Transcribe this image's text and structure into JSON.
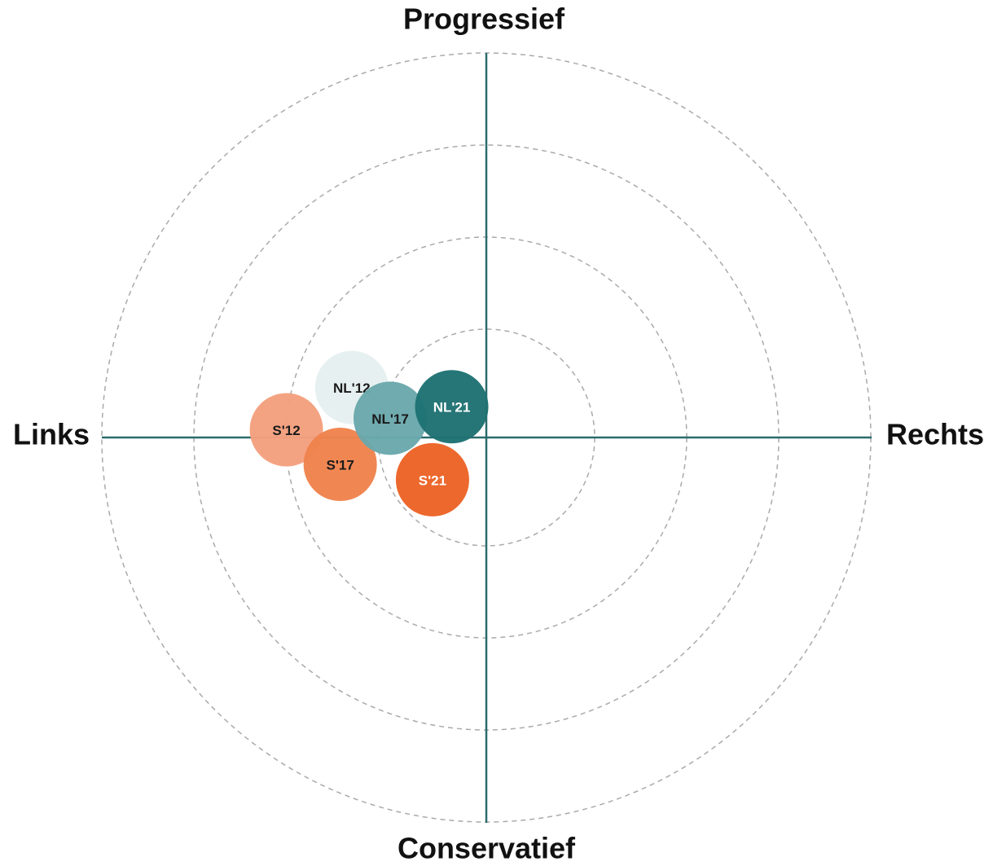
{
  "chart_data": {
    "type": "scatter",
    "top_label": "Progressief",
    "bottom_label": "Conservatief",
    "left_label": "Links",
    "right_label": "Rechts",
    "xlim": [
      -10,
      10
    ],
    "ylim": [
      -10,
      10
    ],
    "series": [
      {
        "name": "NL'12",
        "color": "#e6efef",
        "label_color": "#1a1a1a",
        "x": [
          -3.5
        ],
        "values": [
          1.3
        ]
      },
      {
        "name": "S'12",
        "color": "#f4a07e",
        "label_color": "#1a1a1a",
        "x": [
          -5.2
        ],
        "values": [
          0.2
        ]
      },
      {
        "name": "S'17",
        "color": "#f0834d",
        "label_color": "#1a1a1a",
        "x": [
          -3.8
        ],
        "values": [
          -0.7
        ]
      },
      {
        "name": "NL'17",
        "color": "#6aa8ac",
        "label_color": "#1a1a1a",
        "x": [
          -2.5
        ],
        "values": [
          0.5
        ]
      },
      {
        "name": "S'21",
        "color": "#ec6326",
        "label_color": "#ffffff",
        "x": [
          -1.4
        ],
        "values": [
          -1.1
        ]
      },
      {
        "name": "NL'21",
        "color": "#1f7273",
        "label_color": "#ffffff",
        "x": [
          -0.9
        ],
        "values": [
          0.8
        ]
      }
    ]
  }
}
